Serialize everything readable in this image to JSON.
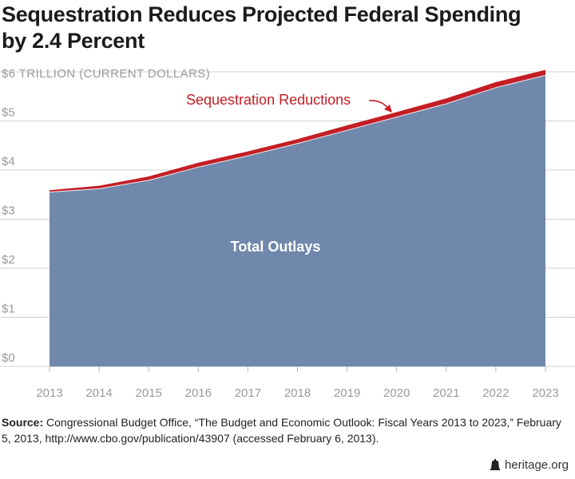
{
  "title": {
    "line1": "Sequestration Reduces Projected Federal Spending",
    "line2": "by 2.4 Percent"
  },
  "chart_data": {
    "type": "area",
    "x": [
      2013,
      2014,
      2015,
      2016,
      2017,
      2018,
      2019,
      2020,
      2021,
      2022,
      2023
    ],
    "series": [
      {
        "name": "Total Outlays",
        "values": [
          3.55,
          3.62,
          3.79,
          4.06,
          4.29,
          4.54,
          4.81,
          5.08,
          5.35,
          5.68,
          5.93
        ]
      },
      {
        "name": "Sequestration Reductions",
        "values": [
          0.04,
          0.06,
          0.08,
          0.09,
          0.09,
          0.09,
          0.1,
          0.1,
          0.11,
          0.11,
          0.11
        ]
      }
    ],
    "ylabel": "$6 TRILLION (CURRENT DOLLARS)",
    "yticks": [
      "$0",
      "$1",
      "$2",
      "$3",
      "$4",
      "$5"
    ],
    "ylim": [
      0,
      6
    ],
    "xticks": [
      "2013",
      "2014",
      "2015",
      "2016",
      "2017",
      "2018",
      "2019",
      "2020",
      "2021",
      "2022",
      "2023"
    ],
    "annotations": {
      "outlays_label": "Total Outlays",
      "reductions_label": "Sequestration Reductions"
    },
    "grid": true,
    "colors": {
      "outlays": "#7088ab",
      "reductions": "#c41e25",
      "grid": "#d0d0d0",
      "ticktext": "#9a9a9a"
    }
  },
  "source": {
    "label": "Source:",
    "text": "Congressional Budget Office, “The Budget and Economic Outlook: Fiscal Years 2013 to 2023,” February 5, 2013, http://www.cbo.gov/publication/43907 (accessed February 6, 2013)."
  },
  "footer": {
    "brand": "heritage.org",
    "icon": "liberty-bell-icon"
  }
}
